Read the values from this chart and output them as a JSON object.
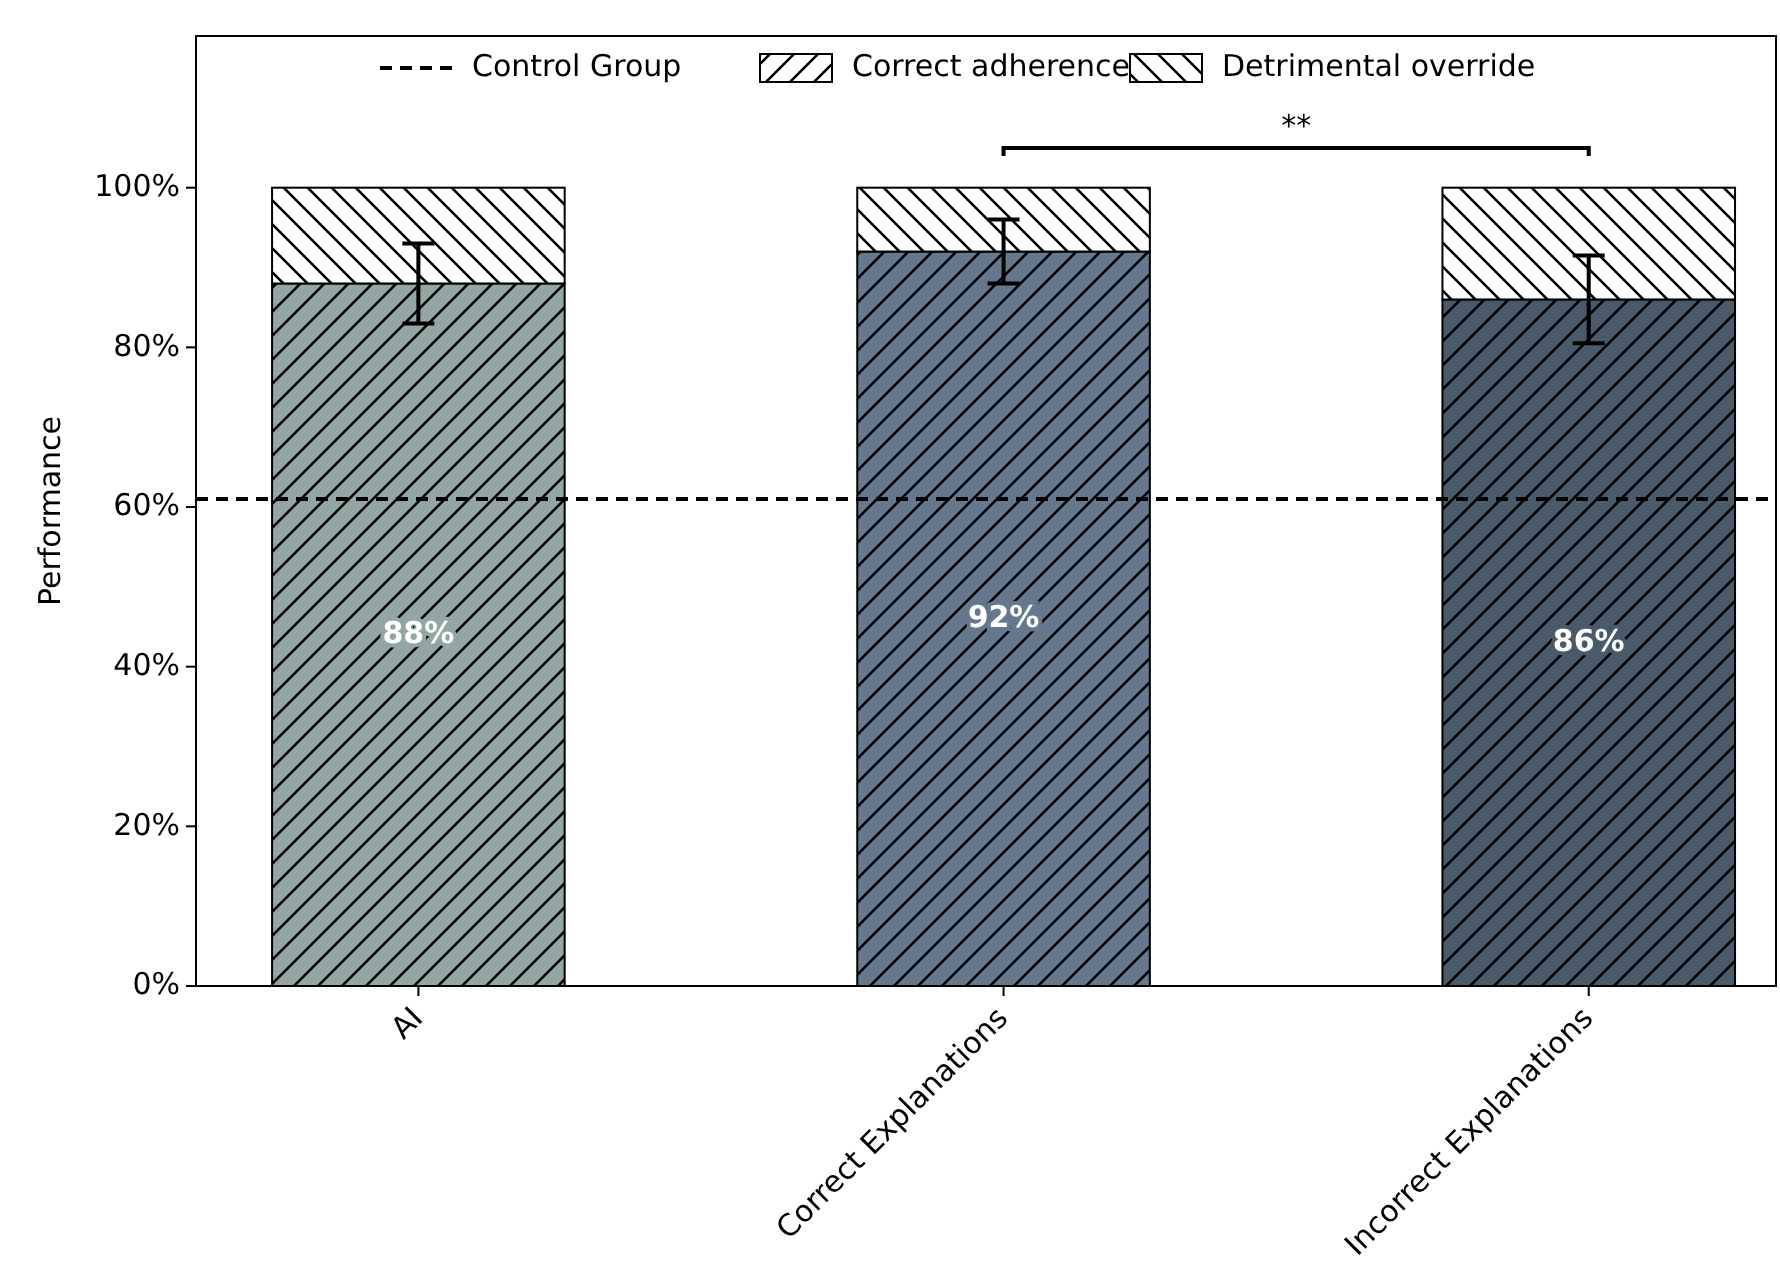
{
  "chart_data": {
    "type": "bar",
    "stacked": true,
    "ylabel": "Performance",
    "categories": [
      "AI",
      "Correct Explanations",
      "Incorrect Explanations"
    ],
    "series": [
      {
        "name": "Correct adherence",
        "colors": [
          "#94a6a4",
          "#65788d",
          "#495a6b"
        ],
        "values": [
          88,
          92,
          86
        ],
        "errors": [
          5,
          4,
          5.5
        ],
        "value_labels": [
          "88%",
          "92%",
          "86%"
        ]
      },
      {
        "name": "Detrimental override",
        "color": "#ffffff",
        "values": [
          12,
          8,
          14
        ]
      }
    ],
    "ylim": [
      0,
      119
    ],
    "yticks": [
      {
        "value": 0,
        "label": "0%"
      },
      {
        "value": 20,
        "label": "20%"
      },
      {
        "value": 40,
        "label": "40%"
      },
      {
        "value": 60,
        "label": "60%"
      },
      {
        "value": 80,
        "label": "80%"
      },
      {
        "value": 100,
        "label": "100%"
      }
    ],
    "ref_lines": [
      {
        "axis": "y",
        "value": 61,
        "label": "Control Group",
        "line_style": "dashed",
        "color": "#000000"
      }
    ],
    "annotations": [
      "**"
    ],
    "legend": "top",
    "grid": false
  }
}
